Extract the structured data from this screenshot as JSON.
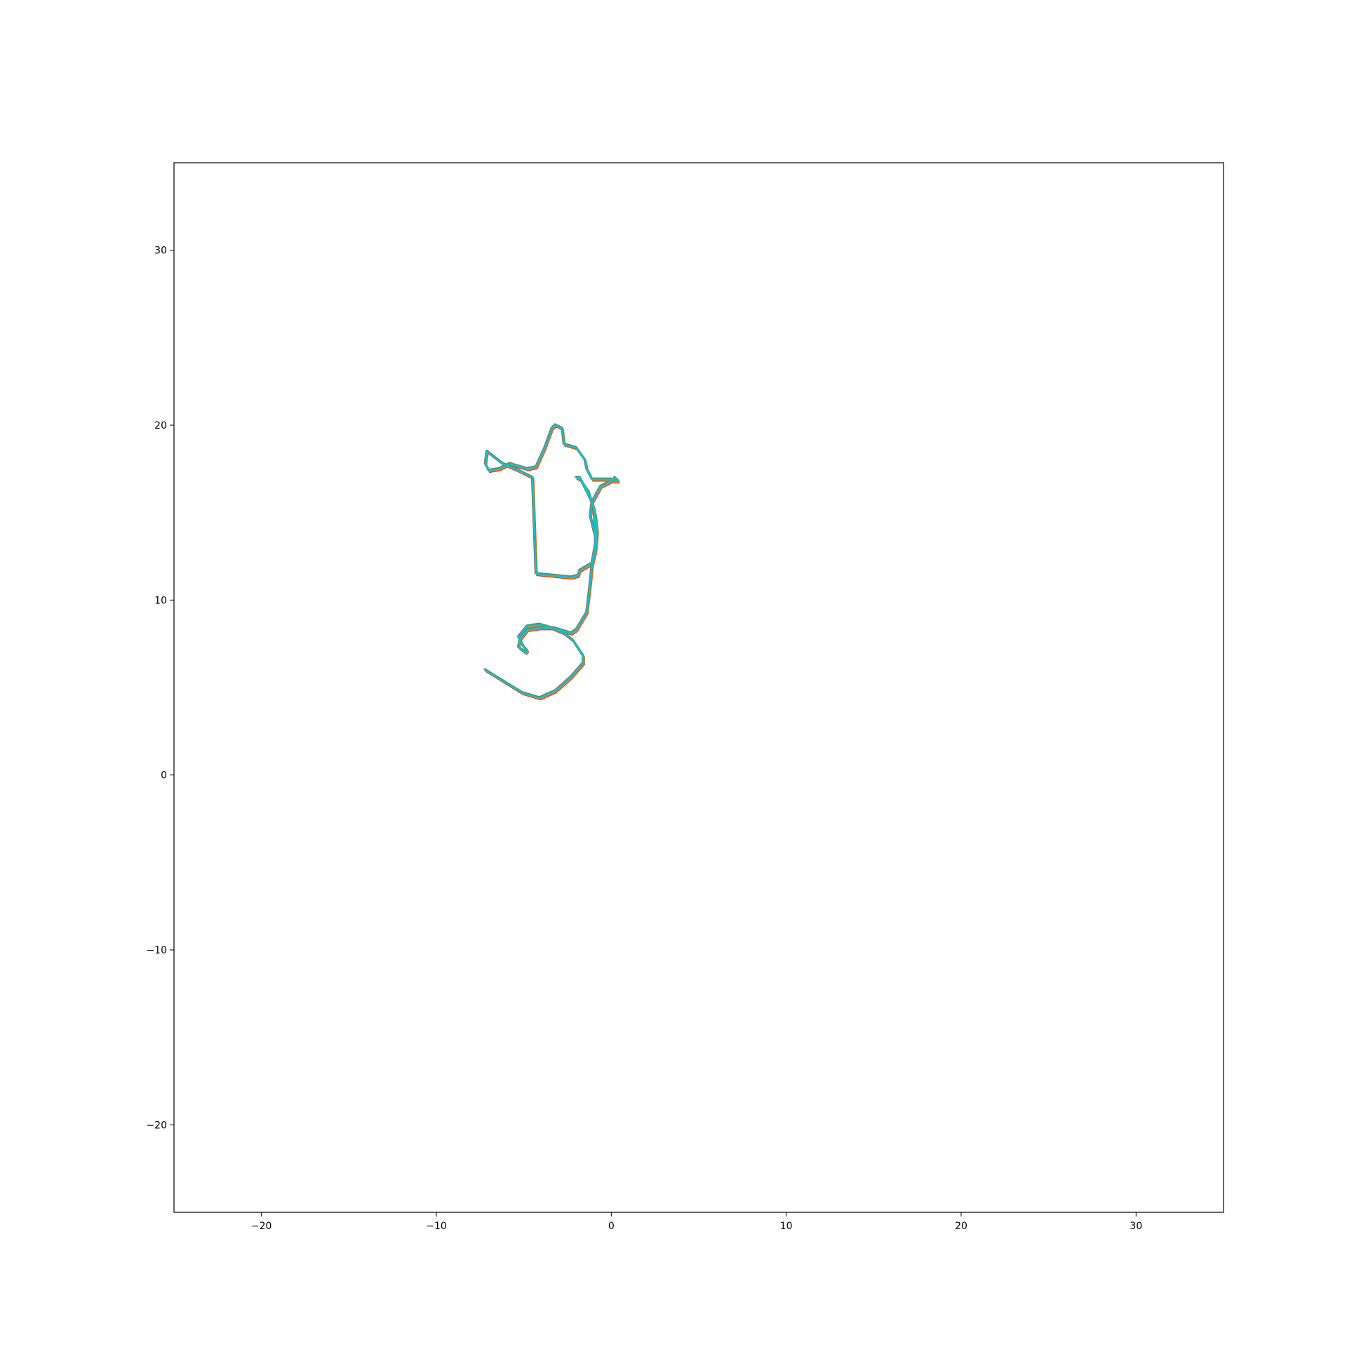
{
  "chart_data": {
    "type": "line",
    "title": "",
    "xlabel": "",
    "ylabel": "",
    "xlim": [
      -25,
      35
    ],
    "ylim": [
      -25,
      35
    ],
    "grid": false,
    "legend": "none",
    "x_ticks": [
      -20,
      -10,
      0,
      10,
      20,
      30
    ],
    "y_ticks": [
      -20,
      -10,
      0,
      10,
      20,
      30
    ],
    "x_tick_labels": [
      "−20",
      "−10",
      "0",
      "10",
      "20",
      "30"
    ],
    "y_tick_labels": [
      "−20",
      "−10",
      "0",
      "10",
      "20",
      "30"
    ],
    "series": [
      {
        "color": "#d62728",
        "offset": [
          0.05,
          -0.08
        ],
        "x": [
          -7.2,
          -5.1,
          -4.1,
          -3.2,
          -2.3,
          -1.6,
          -1.6,
          -2.2,
          -2.7,
          -3.4,
          -4.1,
          -4.8,
          -5.3,
          -5.0,
          -4.8,
          -4.9,
          -5.3,
          -5.2,
          -4.8,
          -4.1,
          -3.3,
          -2.3,
          -2.0,
          -1.4,
          -1.2,
          -1.1,
          -0.9,
          -0.8,
          -0.9,
          -1.0,
          -1.2,
          -1.6,
          -1.8,
          -2.0,
          -1.8,
          -1.3,
          -1.0,
          -0.9,
          -0.9,
          -1.1,
          -1.8,
          -1.9,
          -2.3,
          -3.3,
          -4.3,
          -4.5,
          -5.3,
          -6.2,
          -7.1,
          -7.2,
          -7.0,
          -6.4,
          -5.8,
          -5.5,
          -4.8,
          -4.3,
          -3.8,
          -3.4,
          -3.2,
          -2.8,
          -2.7,
          -2.0,
          -1.5,
          -1.4,
          -1.1,
          -0.6,
          -0.3,
          0.0,
          0.3,
          0.2,
          0.4,
          0.0,
          -0.6,
          -1.1,
          -1.2,
          -1.0,
          -0.9
        ],
        "y": [
          6.0,
          4.7,
          4.4,
          4.8,
          5.6,
          6.4,
          6.8,
          7.7,
          8.1,
          8.4,
          8.6,
          8.5,
          7.9,
          7.3,
          7.1,
          7.0,
          7.3,
          7.8,
          8.3,
          8.4,
          8.4,
          8.1,
          8.3,
          9.3,
          11.0,
          12.0,
          12.8,
          13.9,
          14.8,
          15.3,
          15.8,
          16.6,
          17.0,
          17.0,
          16.9,
          16.2,
          15.2,
          14.0,
          13.2,
          12.1,
          11.7,
          11.4,
          11.3,
          11.4,
          11.5,
          17.0,
          17.4,
          17.8,
          18.5,
          17.8,
          17.4,
          17.5,
          17.8,
          17.7,
          17.5,
          17.6,
          18.7,
          19.8,
          20.0,
          19.8,
          18.9,
          18.7,
          18.0,
          17.5,
          16.9,
          16.9,
          16.9,
          16.9,
          16.8,
          17.0,
          16.8,
          16.8,
          16.5,
          15.6,
          14.8,
          14.0,
          13.6
        ]
      },
      {
        "color": "#ff7f0e",
        "offset": [
          0.04,
          -0.04
        ],
        "x": [
          -7.2,
          -5.1,
          -4.1,
          -3.2,
          -2.3,
          -1.6,
          -1.6,
          -2.2,
          -2.7,
          -3.4,
          -4.1,
          -4.8,
          -5.3,
          -5.0,
          -4.8,
          -4.9,
          -5.3,
          -5.2,
          -4.8,
          -4.1,
          -3.3,
          -2.3,
          -2.0,
          -1.4,
          -1.2,
          -1.1,
          -0.9,
          -0.8,
          -0.9,
          -1.0,
          -1.2,
          -1.6,
          -1.8,
          -2.0,
          -1.8,
          -1.3,
          -1.0,
          -0.9,
          -0.9,
          -1.1,
          -1.8,
          -1.9,
          -2.3,
          -3.3,
          -4.3,
          -4.5,
          -5.3,
          -6.2,
          -7.1,
          -7.2,
          -7.0,
          -6.4,
          -5.8,
          -5.5,
          -4.8,
          -4.3,
          -3.8,
          -3.4,
          -3.2,
          -2.8,
          -2.7,
          -2.0,
          -1.5,
          -1.4,
          -1.1,
          -0.6,
          -0.3,
          0.0,
          0.3,
          0.2,
          0.4,
          0.0,
          -0.6,
          -1.1,
          -1.2,
          -1.0,
          -0.9
        ],
        "y": [
          6.0,
          4.7,
          4.4,
          4.8,
          5.6,
          6.4,
          6.8,
          7.7,
          8.1,
          8.4,
          8.6,
          8.5,
          7.9,
          7.3,
          7.1,
          7.0,
          7.3,
          7.8,
          8.3,
          8.4,
          8.4,
          8.1,
          8.3,
          9.3,
          11.0,
          12.0,
          12.8,
          13.9,
          14.8,
          15.3,
          15.8,
          16.6,
          17.0,
          17.0,
          16.9,
          16.2,
          15.2,
          14.0,
          13.2,
          12.1,
          11.7,
          11.4,
          11.3,
          11.4,
          11.5,
          17.0,
          17.4,
          17.8,
          18.5,
          17.8,
          17.4,
          17.5,
          17.8,
          17.7,
          17.5,
          17.6,
          18.7,
          19.8,
          20.0,
          19.8,
          18.9,
          18.7,
          18.0,
          17.5,
          16.9,
          16.9,
          16.9,
          16.9,
          16.8,
          17.0,
          16.8,
          16.8,
          16.5,
          15.6,
          14.8,
          14.0,
          13.6
        ]
      },
      {
        "color": "#8c564b",
        "offset": [
          -0.04,
          0.03
        ],
        "x": [
          -7.2,
          -5.1,
          -4.1,
          -3.2,
          -2.3,
          -1.6,
          -1.6,
          -2.2,
          -2.7,
          -3.4,
          -4.1,
          -4.8,
          -5.3,
          -5.0,
          -4.8,
          -4.9,
          -5.3,
          -5.2,
          -4.8,
          -4.1,
          -3.3,
          -2.3,
          -2.0,
          -1.4,
          -1.2,
          -1.1,
          -0.9,
          -0.8,
          -0.9,
          -1.0,
          -1.2,
          -1.6,
          -1.8,
          -2.0,
          -1.8,
          -1.3,
          -1.0,
          -0.9,
          -0.9,
          -1.1,
          -1.8,
          -1.9,
          -2.3,
          -3.3,
          -4.3,
          -4.5,
          -5.3,
          -6.2,
          -7.1,
          -7.2,
          -7.0,
          -6.4,
          -5.8,
          -5.5,
          -4.8,
          -4.3,
          -3.8,
          -3.4,
          -3.2,
          -2.8,
          -2.7,
          -2.0,
          -1.5,
          -1.4,
          -1.1,
          -0.6,
          -0.3,
          0.0,
          0.3,
          0.2,
          0.4,
          0.0,
          -0.6,
          -1.1,
          -1.2,
          -1.0,
          -0.9
        ],
        "y": [
          6.0,
          4.7,
          4.4,
          4.8,
          5.6,
          6.4,
          6.8,
          7.7,
          8.1,
          8.4,
          8.6,
          8.5,
          7.9,
          7.3,
          7.1,
          7.0,
          7.3,
          7.8,
          8.3,
          8.4,
          8.4,
          8.1,
          8.3,
          9.3,
          11.0,
          12.0,
          12.8,
          13.9,
          14.8,
          15.3,
          15.8,
          16.6,
          17.0,
          17.0,
          16.9,
          16.2,
          15.2,
          14.0,
          13.2,
          12.1,
          11.7,
          11.4,
          11.3,
          11.4,
          11.5,
          17.0,
          17.4,
          17.8,
          18.5,
          17.8,
          17.4,
          17.5,
          17.8,
          17.7,
          17.5,
          17.6,
          18.7,
          19.8,
          20.0,
          19.8,
          18.9,
          18.7,
          18.0,
          17.5,
          16.9,
          16.9,
          16.9,
          16.9,
          16.8,
          17.0,
          16.8,
          16.8,
          16.5,
          15.6,
          14.8,
          14.0,
          13.6
        ]
      },
      {
        "color": "#7f7f7f",
        "offset": [
          -0.02,
          0.06
        ],
        "x": [
          -7.2,
          -5.1,
          -4.1,
          -3.2,
          -2.3,
          -1.6,
          -1.6,
          -2.2,
          -2.7,
          -3.4,
          -4.1,
          -4.8,
          -5.3,
          -5.0,
          -4.8,
          -4.9,
          -5.3,
          -5.2,
          -4.8,
          -4.1,
          -3.3,
          -2.3,
          -2.0,
          -1.4,
          -1.2,
          -1.1,
          -0.9,
          -0.8,
          -0.9,
          -1.0,
          -1.2,
          -1.6,
          -1.8,
          -2.0,
          -1.8,
          -1.3,
          -1.0,
          -0.9,
          -0.9,
          -1.1,
          -1.8,
          -1.9,
          -2.3,
          -3.3,
          -4.3,
          -4.5,
          -5.3,
          -6.2,
          -7.1,
          -7.2,
          -7.0,
          -6.4,
          -5.8,
          -5.5,
          -4.8,
          -4.3,
          -3.8,
          -3.4,
          -3.2,
          -2.8,
          -2.7,
          -2.0,
          -1.5,
          -1.4,
          -1.1,
          -0.6,
          -0.3,
          0.0,
          0.3,
          0.2,
          0.4,
          0.0,
          -0.6,
          -1.1,
          -1.2,
          -1.0,
          -0.9
        ],
        "y": [
          6.0,
          4.7,
          4.4,
          4.8,
          5.6,
          6.4,
          6.8,
          7.7,
          8.1,
          8.4,
          8.6,
          8.5,
          7.9,
          7.3,
          7.1,
          7.0,
          7.3,
          7.8,
          8.3,
          8.4,
          8.4,
          8.1,
          8.3,
          9.3,
          11.0,
          12.0,
          12.8,
          13.9,
          14.8,
          15.3,
          15.8,
          16.6,
          17.0,
          17.0,
          16.9,
          16.2,
          15.2,
          14.0,
          13.2,
          12.1,
          11.7,
          11.4,
          11.3,
          11.4,
          11.5,
          17.0,
          17.4,
          17.8,
          18.5,
          17.8,
          17.4,
          17.5,
          17.8,
          17.7,
          17.5,
          17.6,
          18.7,
          19.8,
          20.0,
          19.8,
          18.9,
          18.7,
          18.0,
          17.5,
          16.9,
          16.9,
          16.9,
          16.9,
          16.8,
          17.0,
          16.8,
          16.8,
          16.5,
          15.6,
          14.8,
          14.0,
          13.6
        ]
      },
      {
        "color": "#2ca02c",
        "offset": [
          0.02,
          0.02
        ],
        "x": [
          -7.2,
          -5.1,
          -4.1,
          -3.2,
          -2.3,
          -1.6,
          -1.6,
          -2.2,
          -2.7,
          -3.4,
          -4.1,
          -4.8,
          -5.3,
          -5.0,
          -4.8,
          -4.9,
          -5.3,
          -5.2,
          -4.8,
          -4.1,
          -3.3,
          -2.3,
          -2.0,
          -1.4,
          -1.2,
          -1.1,
          -0.9,
          -0.8,
          -0.9,
          -1.0,
          -1.2,
          -1.6,
          -1.8,
          -2.0,
          -1.8,
          -1.3,
          -1.0,
          -0.9,
          -0.9,
          -1.1,
          -1.8,
          -1.9,
          -2.3,
          -3.3,
          -4.3,
          -4.5,
          -5.3,
          -6.2,
          -7.1,
          -7.2,
          -7.0,
          -6.4,
          -5.8,
          -5.5,
          -4.8,
          -4.3,
          -3.8,
          -3.4,
          -3.2,
          -2.8,
          -2.7,
          -2.0,
          -1.5,
          -1.4,
          -1.1,
          -0.6,
          -0.3,
          0.0,
          0.3,
          0.2,
          0.4,
          0.0,
          -0.6,
          -1.1,
          -1.2,
          -1.0,
          -0.9
        ],
        "y": [
          6.0,
          4.7,
          4.4,
          4.8,
          5.6,
          6.4,
          6.8,
          7.7,
          8.1,
          8.4,
          8.6,
          8.5,
          7.9,
          7.3,
          7.1,
          7.0,
          7.3,
          7.8,
          8.3,
          8.4,
          8.4,
          8.1,
          8.3,
          9.3,
          11.0,
          12.0,
          12.8,
          13.9,
          14.8,
          15.3,
          15.8,
          16.6,
          17.0,
          17.0,
          16.9,
          16.2,
          15.2,
          14.0,
          13.2,
          12.1,
          11.7,
          11.4,
          11.3,
          11.4,
          11.5,
          17.0,
          17.4,
          17.8,
          18.5,
          17.8,
          17.4,
          17.5,
          17.8,
          17.7,
          17.5,
          17.6,
          18.7,
          19.8,
          20.0,
          19.8,
          18.9,
          18.7,
          18.0,
          17.5,
          16.9,
          16.9,
          16.9,
          16.9,
          16.8,
          17.0,
          16.8,
          16.8,
          16.5,
          15.6,
          14.8,
          14.0,
          13.6
        ]
      },
      {
        "color": "#17becf",
        "offset": [
          0.0,
          0.0
        ],
        "x": [
          -7.2,
          -5.1,
          -4.1,
          -3.2,
          -2.3,
          -1.6,
          -1.6,
          -2.2,
          -2.7,
          -3.4,
          -4.1,
          -4.8,
          -5.3,
          -5.0,
          -4.8,
          -4.9,
          -5.3,
          -5.2,
          -4.8,
          -4.1,
          -3.3,
          -2.3,
          -2.0,
          -1.4,
          -1.2,
          -1.1,
          -0.9,
          -0.8,
          -0.9,
          -1.0,
          -1.2,
          -1.6,
          -1.8,
          -2.0,
          -1.8,
          -1.3,
          -1.0,
          -0.9,
          -0.9,
          -1.1,
          -1.8,
          -1.9,
          -2.3,
          -3.3,
          -4.3,
          -4.5,
          -5.3,
          -6.2,
          -7.1,
          -7.2,
          -7.0,
          -6.4,
          -5.8,
          -5.5,
          -4.8,
          -4.3,
          -3.8,
          -3.4,
          -3.2,
          -2.8,
          -2.7,
          -2.0,
          -1.5,
          -1.4,
          -1.1,
          -0.6,
          -0.3,
          0.0,
          0.3,
          0.2,
          0.4,
          0.0,
          -0.6,
          -1.1,
          -1.2,
          -1.0,
          -0.9
        ],
        "y": [
          6.0,
          4.7,
          4.4,
          4.8,
          5.6,
          6.4,
          6.8,
          7.7,
          8.1,
          8.4,
          8.6,
          8.5,
          7.9,
          7.3,
          7.1,
          7.0,
          7.3,
          7.8,
          8.3,
          8.4,
          8.4,
          8.1,
          8.3,
          9.3,
          11.0,
          12.0,
          12.8,
          13.9,
          14.8,
          15.3,
          15.8,
          16.6,
          17.0,
          17.0,
          16.9,
          16.2,
          15.2,
          14.0,
          13.2,
          12.1,
          11.7,
          11.4,
          11.3,
          11.4,
          11.5,
          17.0,
          17.4,
          17.8,
          18.5,
          17.8,
          17.4,
          17.5,
          17.8,
          17.7,
          17.5,
          17.6,
          18.7,
          19.8,
          20.0,
          19.8,
          18.9,
          18.7,
          18.0,
          17.5,
          16.9,
          16.9,
          16.9,
          16.9,
          16.8,
          17.0,
          16.8,
          16.8,
          16.5,
          15.6,
          14.8,
          14.0,
          13.6
        ]
      }
    ]
  }
}
